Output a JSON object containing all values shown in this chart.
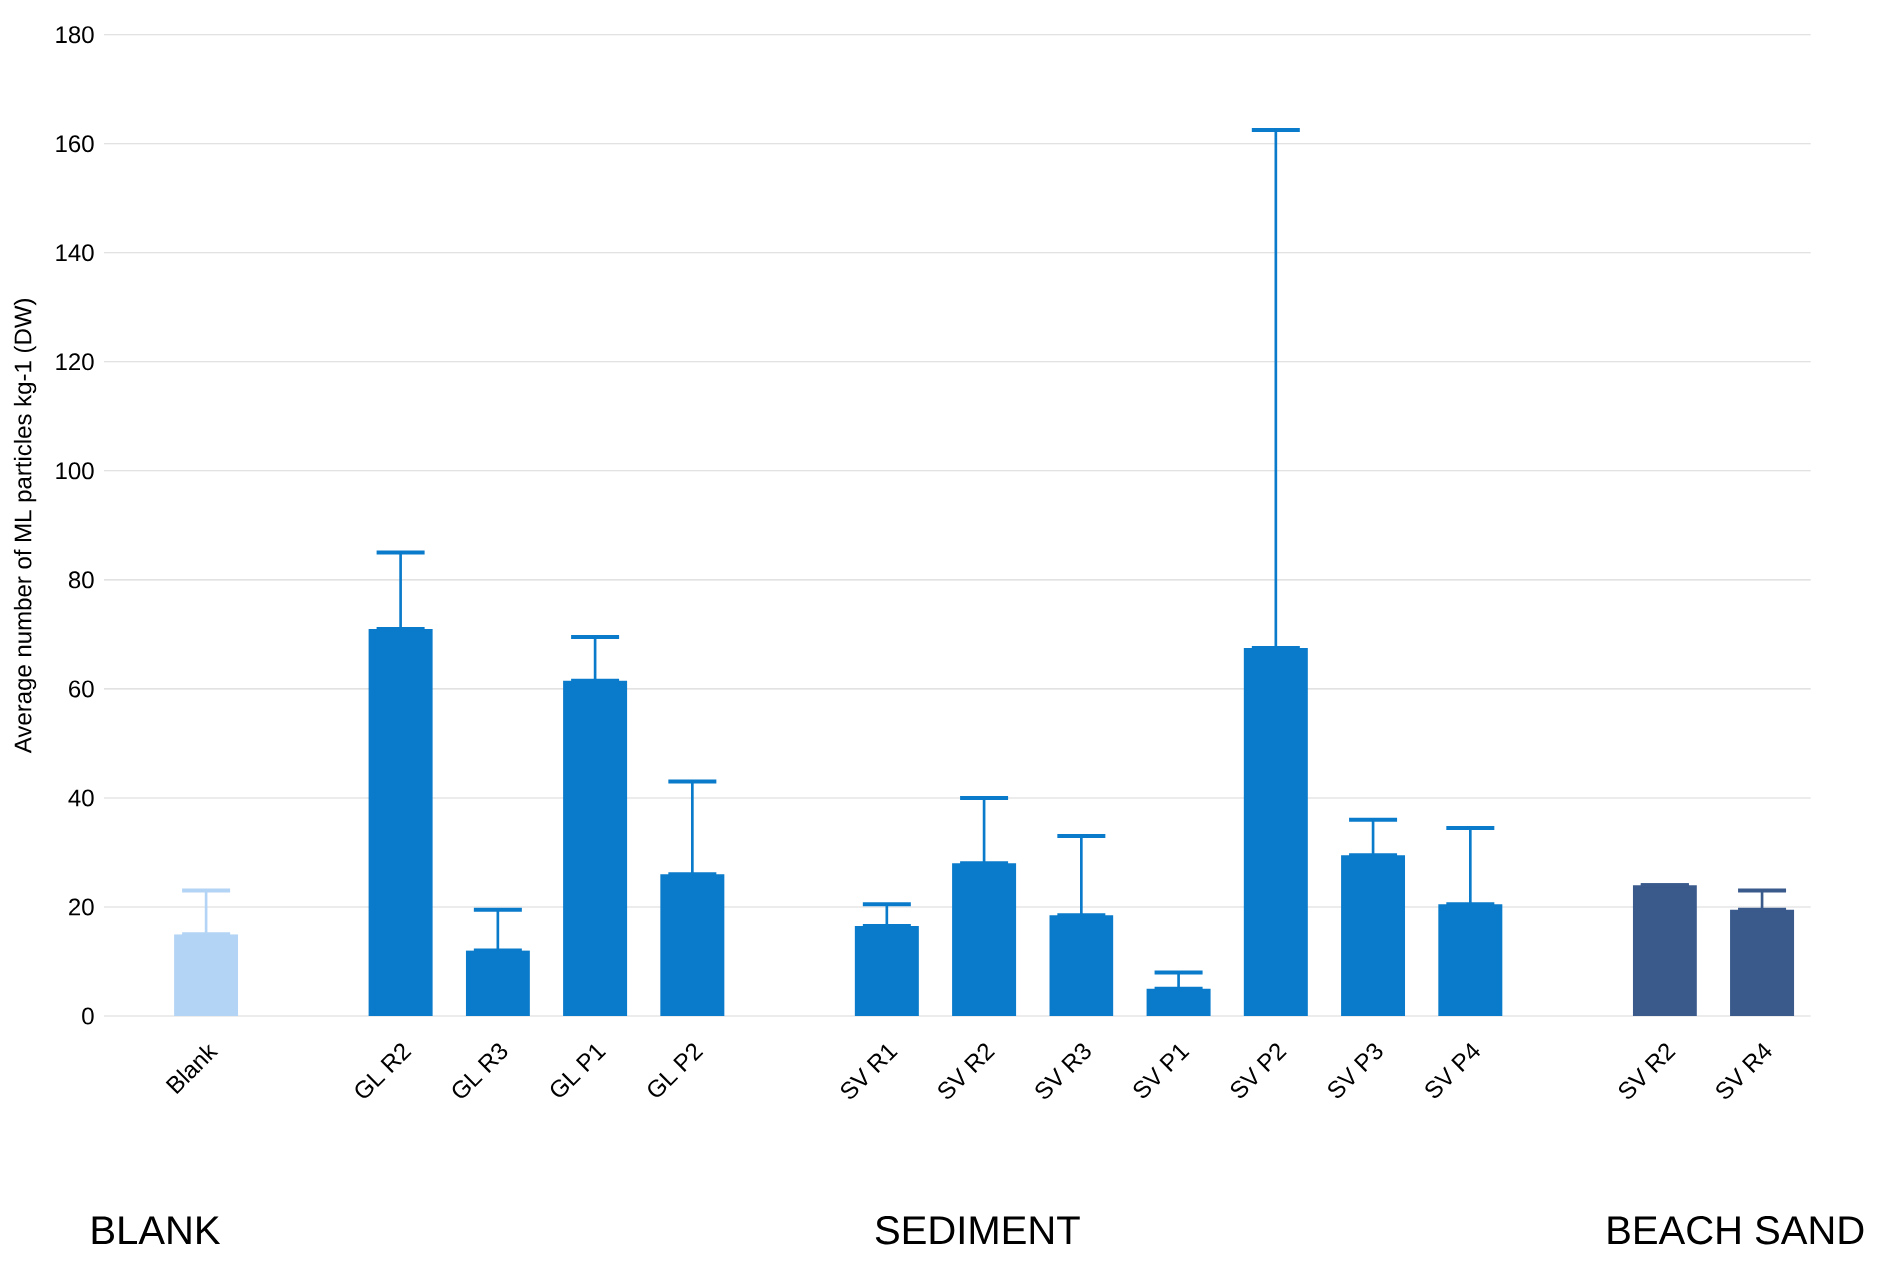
{
  "chart_data": {
    "type": "bar",
    "ylabel": "Average number of ML particles kg-1 (DW)",
    "categories": [
      "Blank",
      null,
      "GL R2",
      "GL R3",
      "GL P1",
      "GL P2",
      null,
      "SV R1",
      "SV R2",
      "SV R3",
      "SV P1",
      "SV P2",
      "SV P3",
      "SV P4",
      null,
      "SV R2",
      "SV R4"
    ],
    "values": [
      15,
      null,
      71,
      12,
      61.5,
      26,
      null,
      16.5,
      28,
      18.5,
      5,
      67.5,
      29.5,
      20.5,
      null,
      24,
      19.5
    ],
    "colors": [
      "#b3d4f5",
      null,
      "#0a7bca",
      "#0a7bca",
      "#0a7bca",
      "#0a7bca",
      null,
      "#0a7bca",
      "#0a7bca",
      "#0a7bca",
      "#0a7bca",
      "#0a7bca",
      "#0a7bca",
      "#0a7bca",
      null,
      "#3a5a8c",
      "#3a5a8c"
    ],
    "errors": [
      [
        15,
        23
      ],
      null,
      [
        71,
        85
      ],
      [
        12,
        19.5
      ],
      [
        61.5,
        69.5
      ],
      [
        26,
        43
      ],
      null,
      [
        16.5,
        20.5
      ],
      [
        28,
        40
      ],
      [
        18.5,
        33
      ],
      [
        5,
        8
      ],
      [
        67.5,
        162.5
      ],
      [
        29.5,
        36
      ],
      [
        20.5,
        34.5
      ],
      null,
      [
        24,
        24
      ],
      [
        19.5,
        23
      ]
    ],
    "ylim": [
      0,
      180
    ],
    "yticks": [
      0,
      20,
      40,
      60,
      80,
      100,
      120,
      140,
      160,
      180
    ],
    "grid": "y",
    "annotations": [
      "BLANK",
      "SEDIMENT",
      "BEACH SAND"
    ]
  }
}
